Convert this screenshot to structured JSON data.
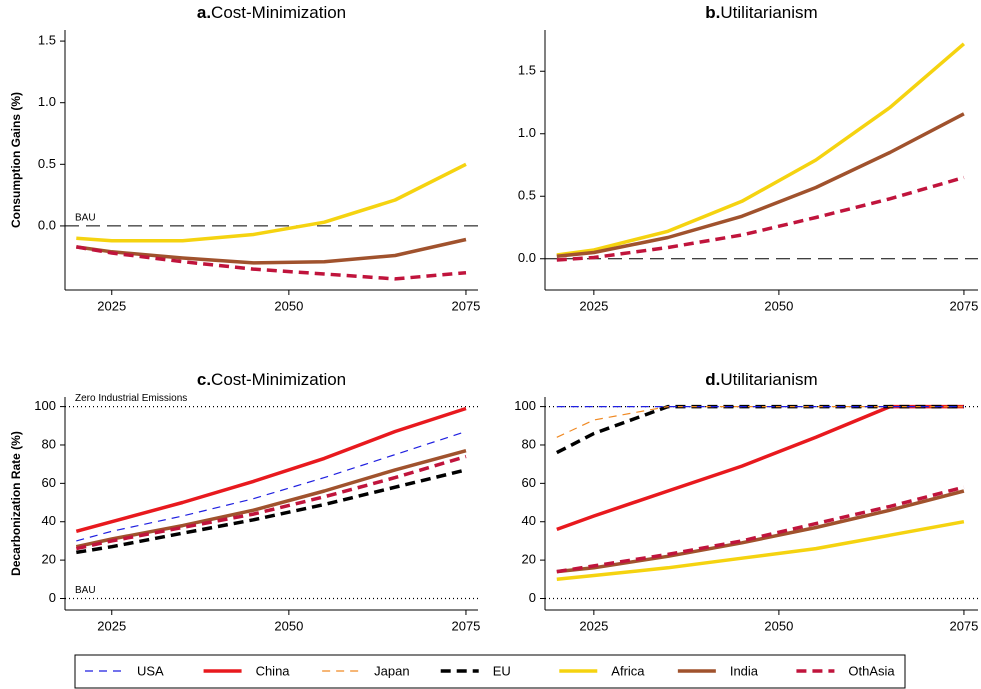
{
  "chart_data": [
    {
      "type": "line",
      "label": "a.",
      "title": "Cost-Minimization",
      "ylabel": "Consumption Gains (%)",
      "x": [
        2020,
        2025,
        2035,
        2045,
        2055,
        2065,
        2075
      ],
      "xlim": [
        2018.4,
        2076.7
      ],
      "xticks": [
        2025,
        2050,
        2075
      ],
      "ylim": [
        -0.52,
        1.59
      ],
      "yticks": [
        {
          "value": 0,
          "label": "0.0"
        },
        {
          "value": 0.5,
          "label": "0.5"
        },
        {
          "value": 1,
          "label": "1.0"
        },
        {
          "value": 1.5,
          "label": "1.5"
        }
      ],
      "refs": [
        {
          "value": 0,
          "label": "BAU",
          "style": "dashed"
        }
      ],
      "series": [
        {
          "name": "Africa",
          "values": [
            -0.1,
            -0.12,
            -0.12,
            -0.07,
            0.03,
            0.21,
            0.5
          ]
        },
        {
          "name": "India",
          "values": [
            -0.17,
            -0.21,
            -0.26,
            -0.3,
            -0.29,
            -0.24,
            -0.11
          ]
        },
        {
          "name": "OthAsia",
          "values": [
            -0.17,
            -0.22,
            -0.29,
            -0.35,
            -0.39,
            -0.43,
            -0.38
          ]
        }
      ]
    },
    {
      "type": "line",
      "label": "b.",
      "title": "Utilitarianism",
      "x": [
        2020,
        2025,
        2035,
        2045,
        2055,
        2065,
        2075
      ],
      "xlim": [
        2018.4,
        2076.9
      ],
      "xticks": [
        2025,
        2050,
        2075
      ],
      "ylim": [
        -0.25,
        1.83
      ],
      "yticks": [
        {
          "value": 0,
          "label": "0.0"
        },
        {
          "value": 0.5,
          "label": "0.5"
        },
        {
          "value": 1,
          "label": "1.0"
        },
        {
          "value": 1.5,
          "label": "1.5"
        }
      ],
      "refs": [
        {
          "value": 0,
          "style": "dashed"
        }
      ],
      "series": [
        {
          "name": "Africa",
          "values": [
            0.03,
            0.07,
            0.22,
            0.46,
            0.79,
            1.21,
            1.72
          ]
        },
        {
          "name": "India",
          "values": [
            0.02,
            0.05,
            0.17,
            0.34,
            0.57,
            0.85,
            1.16
          ]
        },
        {
          "name": "OthAsia",
          "values": [
            -0.01,
            0.01,
            0.09,
            0.19,
            0.33,
            0.48,
            0.65
          ]
        }
      ]
    },
    {
      "type": "line",
      "label": "c.",
      "title": "Cost-Minimization",
      "ylabel": "Decarbonization Rate (%)",
      "x": [
        2020,
        2025,
        2035,
        2045,
        2055,
        2065,
        2075
      ],
      "xlim": [
        2018.4,
        2076.7
      ],
      "xticks": [
        2025,
        2050,
        2075
      ],
      "ylim": [
        -6,
        105
      ],
      "yticks": [
        0,
        20,
        40,
        60,
        80,
        100
      ],
      "refs": [
        {
          "value": 100,
          "label": "Zero Industrial Emissions",
          "style": "dotted"
        },
        {
          "value": 0,
          "label": "BAU",
          "style": "dotted"
        }
      ],
      "series": [
        {
          "name": "USA",
          "values": [
            30,
            35,
            43,
            52,
            63,
            75,
            87
          ]
        },
        {
          "name": "EU",
          "values": [
            24,
            27,
            34,
            41,
            49,
            58,
            67
          ]
        },
        {
          "name": "India",
          "values": [
            27,
            31,
            38,
            46,
            56,
            67,
            77
          ]
        },
        {
          "name": "OthAsia",
          "values": [
            26,
            30,
            37,
            44,
            53,
            63,
            74
          ]
        },
        {
          "name": "China",
          "values": [
            35,
            40,
            50,
            61,
            73,
            87,
            99
          ]
        }
      ]
    },
    {
      "type": "line",
      "label": "d.",
      "title": "Utilitarianism",
      "x": [
        2020,
        2025,
        2035,
        2045,
        2055,
        2065,
        2075
      ],
      "xlim": [
        2018.4,
        2076.9
      ],
      "xticks": [
        2025,
        2050,
        2075
      ],
      "ylim": [
        -6,
        105
      ],
      "yticks": [
        0,
        20,
        40,
        60,
        80,
        100
      ],
      "refs": [
        {
          "value": 100,
          "style": "dotted"
        },
        {
          "value": 0,
          "style": "dotted"
        }
      ],
      "series": [
        {
          "name": "Africa",
          "values": [
            10,
            12,
            16,
            21,
            26,
            33,
            40
          ]
        },
        {
          "name": "India",
          "values": [
            14,
            16,
            22,
            29,
            37,
            46,
            56
          ]
        },
        {
          "name": "OthAsia",
          "values": [
            14,
            17,
            23,
            30,
            39,
            48,
            58
          ]
        },
        {
          "name": "China",
          "values": [
            36,
            43,
            56,
            69,
            84,
            100,
            100
          ]
        },
        {
          "name": "EU",
          "values": [
            76,
            86,
            100,
            100,
            100,
            100,
            100
          ]
        },
        {
          "name": "Japan",
          "values": [
            84,
            93,
            100,
            100,
            100,
            100,
            100
          ]
        },
        {
          "name": "USA",
          "values": [
            100,
            100,
            100,
            100,
            100,
            100,
            100
          ]
        }
      ]
    }
  ],
  "legend": [
    {
      "name": "USA",
      "color": "#1f1fe0",
      "style": "dashed",
      "weight": "thin"
    },
    {
      "name": "China",
      "color": "#e8191e",
      "style": "solid",
      "weight": "thick"
    },
    {
      "name": "Japan",
      "color": "#f08a24",
      "style": "dashed",
      "weight": "thin"
    },
    {
      "name": "EU",
      "color": "#000000",
      "style": "dashed",
      "weight": "thick"
    },
    {
      "name": "Africa",
      "color": "#f5d310",
      "style": "solid",
      "weight": "thick"
    },
    {
      "name": "India",
      "color": "#a0522d",
      "style": "solid",
      "weight": "thick"
    },
    {
      "name": "OthAsia",
      "color": "#c0143c",
      "style": "dashed",
      "weight": "thick"
    }
  ]
}
